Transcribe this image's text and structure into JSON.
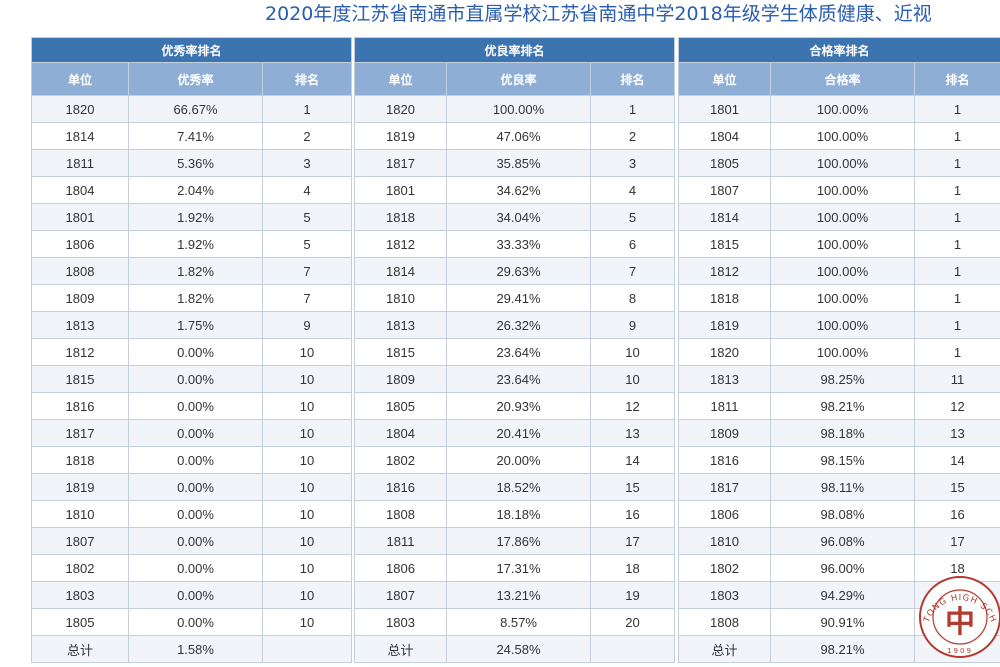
{
  "title": "2020年度江苏省南通市直属学校江苏省南通中学2018年级学生体质健康、近视",
  "tables": [
    {
      "title": "优秀率排名",
      "columns": [
        "单位",
        "优秀率",
        "排名"
      ],
      "rows": [
        [
          "1820",
          "66.67%",
          "1"
        ],
        [
          "1814",
          "7.41%",
          "2"
        ],
        [
          "1811",
          "5.36%",
          "3"
        ],
        [
          "1804",
          "2.04%",
          "4"
        ],
        [
          "1801",
          "1.92%",
          "5"
        ],
        [
          "1806",
          "1.92%",
          "5"
        ],
        [
          "1808",
          "1.82%",
          "7"
        ],
        [
          "1809",
          "1.82%",
          "7"
        ],
        [
          "1813",
          "1.75%",
          "9"
        ],
        [
          "1812",
          "0.00%",
          "10"
        ],
        [
          "1815",
          "0.00%",
          "10"
        ],
        [
          "1816",
          "0.00%",
          "10"
        ],
        [
          "1817",
          "0.00%",
          "10"
        ],
        [
          "1818",
          "0.00%",
          "10"
        ],
        [
          "1819",
          "0.00%",
          "10"
        ],
        [
          "1810",
          "0.00%",
          "10"
        ],
        [
          "1807",
          "0.00%",
          "10"
        ],
        [
          "1802",
          "0.00%",
          "10"
        ],
        [
          "1803",
          "0.00%",
          "10"
        ],
        [
          "1805",
          "0.00%",
          "10"
        ]
      ],
      "total": [
        "总计",
        "1.58%",
        ""
      ]
    },
    {
      "title": "优良率排名",
      "columns": [
        "单位",
        "优良率",
        "排名"
      ],
      "rows": [
        [
          "1820",
          "100.00%",
          "1"
        ],
        [
          "1819",
          "47.06%",
          "2"
        ],
        [
          "1817",
          "35.85%",
          "3"
        ],
        [
          "1801",
          "34.62%",
          "4"
        ],
        [
          "1818",
          "34.04%",
          "5"
        ],
        [
          "1812",
          "33.33%",
          "6"
        ],
        [
          "1814",
          "29.63%",
          "7"
        ],
        [
          "1810",
          "29.41%",
          "8"
        ],
        [
          "1813",
          "26.32%",
          "9"
        ],
        [
          "1815",
          "23.64%",
          "10"
        ],
        [
          "1809",
          "23.64%",
          "10"
        ],
        [
          "1805",
          "20.93%",
          "12"
        ],
        [
          "1804",
          "20.41%",
          "13"
        ],
        [
          "1802",
          "20.00%",
          "14"
        ],
        [
          "1816",
          "18.52%",
          "15"
        ],
        [
          "1808",
          "18.18%",
          "16"
        ],
        [
          "1811",
          "17.86%",
          "17"
        ],
        [
          "1806",
          "17.31%",
          "18"
        ],
        [
          "1807",
          "13.21%",
          "19"
        ],
        [
          "1803",
          "8.57%",
          "20"
        ]
      ],
      "total": [
        "总计",
        "24.58%",
        ""
      ]
    },
    {
      "title": "合格率排名",
      "columns": [
        "单位",
        "合格率",
        "排名"
      ],
      "rows": [
        [
          "1801",
          "100.00%",
          "1"
        ],
        [
          "1804",
          "100.00%",
          "1"
        ],
        [
          "1805",
          "100.00%",
          "1"
        ],
        [
          "1807",
          "100.00%",
          "1"
        ],
        [
          "1814",
          "100.00%",
          "1"
        ],
        [
          "1815",
          "100.00%",
          "1"
        ],
        [
          "1812",
          "100.00%",
          "1"
        ],
        [
          "1818",
          "100.00%",
          "1"
        ],
        [
          "1819",
          "100.00%",
          "1"
        ],
        [
          "1820",
          "100.00%",
          "1"
        ],
        [
          "1813",
          "98.25%",
          "11"
        ],
        [
          "1811",
          "98.21%",
          "12"
        ],
        [
          "1809",
          "98.18%",
          "13"
        ],
        [
          "1816",
          "98.15%",
          "14"
        ],
        [
          "1817",
          "98.11%",
          "15"
        ],
        [
          "1806",
          "98.08%",
          "16"
        ],
        [
          "1810",
          "96.08%",
          "17"
        ],
        [
          "1802",
          "96.00%",
          "18"
        ],
        [
          "1803",
          "94.29%",
          ""
        ],
        [
          "1808",
          "90.91%",
          ""
        ]
      ],
      "total": [
        "总计",
        "98.21%",
        ""
      ]
    }
  ],
  "logo": {
    "arc_text": "NANTONG HIGH SCHOOL",
    "year": "1909",
    "glyph": "中",
    "color": "#b33a2e"
  }
}
